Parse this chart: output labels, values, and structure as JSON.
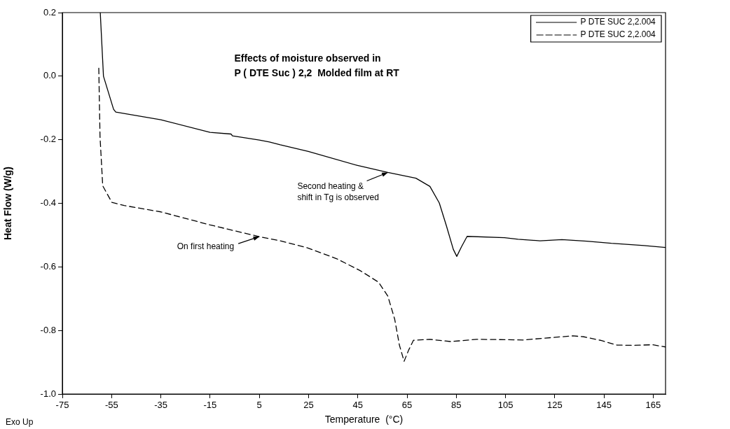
{
  "chart_data": {
    "type": "line",
    "title": "Effects of moisture observed in\nP ( DTE Suc ) 2,2  Molded film at RT",
    "xlabel": "Temperature  (°C)",
    "ylabel": "Heat Flow (W/g)",
    "xlim": [
      -75,
      170
    ],
    "xticks": [
      -75,
      -55,
      -35,
      -15,
      5,
      25,
      45,
      65,
      85,
      105,
      125,
      145,
      165
    ],
    "ylim": [
      -1.0,
      0.2
    ],
    "yticks": [
      {
        "value": -1.0,
        "label": "-1.0"
      },
      -0.8,
      -0.6,
      -0.4,
      -0.2,
      {
        "value": 0,
        "label": "0.0"
      },
      0.2
    ],
    "grid": false,
    "legend": "top right",
    "marker": "none",
    "series": [
      {
        "name": "P DTE SUC 2,2.004",
        "color": "#000000",
        "line_style": "solid",
        "x": [
          -59.6,
          -58.3,
          -54.2,
          -53.3,
          -35,
          -15,
          -6.5,
          -5.9,
          5,
          9.1,
          13.5,
          24.9,
          44.9,
          57.2,
          68.6,
          74.3,
          78.1,
          81.0,
          83.8,
          85.2,
          87.1,
          89.4,
          104.6,
          110.1,
          119.0,
          127.9,
          138.0,
          148.0,
          161.3,
          170
        ],
        "values": [
          0.2,
          0.0,
          -0.104,
          -0.113,
          -0.137,
          -0.177,
          -0.182,
          -0.188,
          -0.201,
          -0.207,
          -0.216,
          -0.237,
          -0.281,
          -0.303,
          -0.321,
          -0.347,
          -0.399,
          -0.471,
          -0.545,
          -0.567,
          -0.537,
          -0.504,
          -0.508,
          -0.513,
          -0.518,
          -0.514,
          -0.519,
          -0.526,
          -0.533,
          -0.539
        ]
      },
      {
        "name": "P DTE SUC 2,2.004",
        "color": "#000000",
        "line_style": "dashed",
        "x": [
          -60.2,
          -59.7,
          -58.6,
          -54.9,
          -49.9,
          -35,
          -15,
          5,
          13.5,
          24.9,
          36.3,
          45.8,
          53.4,
          57.2,
          60.0,
          61.9,
          63.8,
          65.7,
          67.6,
          74.3,
          82.8,
          93.3,
          104.6,
          112.3,
          121.2,
          132.4,
          136.8,
          143.5,
          150.2,
          156.9,
          164.7,
          170
        ],
        "values": [
          0.025,
          -0.19,
          -0.345,
          -0.397,
          -0.407,
          -0.427,
          -0.468,
          -0.505,
          -0.518,
          -0.541,
          -0.574,
          -0.611,
          -0.648,
          -0.692,
          -0.765,
          -0.846,
          -0.897,
          -0.861,
          -0.831,
          -0.828,
          -0.835,
          -0.828,
          -0.829,
          -0.83,
          -0.824,
          -0.817,
          -0.82,
          -0.831,
          -0.846,
          -0.847,
          -0.845,
          -0.852
        ]
      }
    ],
    "annotations": [
      {
        "text": "On first heating",
        "x": 5,
        "y": -0.505
      },
      {
        "text": "Second heating &\nshift in Tg is observed",
        "x": 57.2,
        "y": -0.303
      },
      "Exo Up"
    ]
  }
}
